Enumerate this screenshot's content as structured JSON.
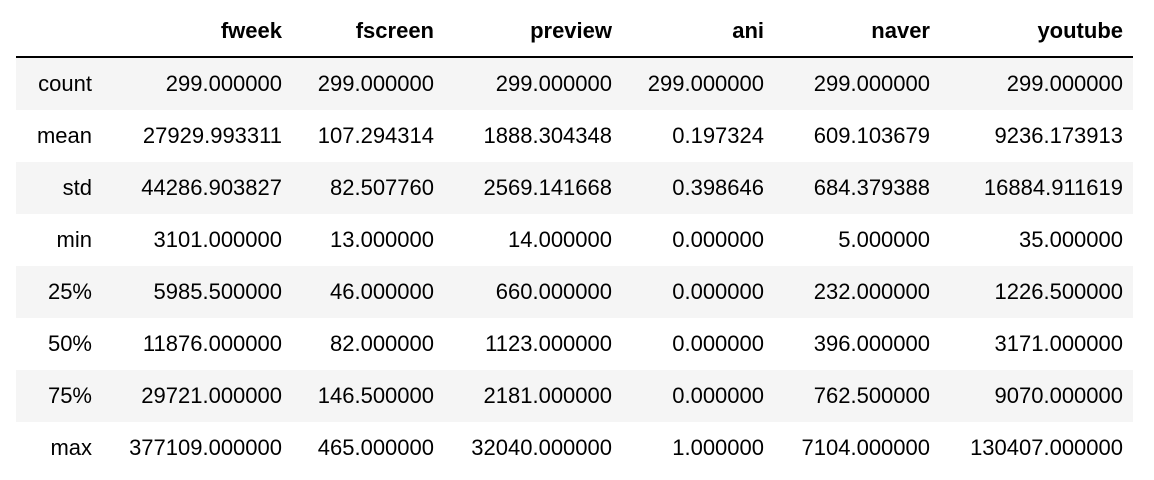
{
  "table": {
    "columns": [
      "",
      "fweek",
      "fscreen",
      "preview",
      "ani",
      "naver",
      "youtube"
    ],
    "rows": [
      {
        "index": "count",
        "values": [
          "299.000000",
          "299.000000",
          "299.000000",
          "299.000000",
          "299.000000",
          "299.000000"
        ]
      },
      {
        "index": "mean",
        "values": [
          "27929.993311",
          "107.294314",
          "1888.304348",
          "0.197324",
          "609.103679",
          "9236.173913"
        ]
      },
      {
        "index": "std",
        "values": [
          "44286.903827",
          "82.507760",
          "2569.141668",
          "0.398646",
          "684.379388",
          "16884.911619"
        ]
      },
      {
        "index": "min",
        "values": [
          "3101.000000",
          "13.000000",
          "14.000000",
          "0.000000",
          "5.000000",
          "35.000000"
        ]
      },
      {
        "index": "25%",
        "values": [
          "5985.500000",
          "46.000000",
          "660.000000",
          "0.000000",
          "232.000000",
          "1226.500000"
        ]
      },
      {
        "index": "50%",
        "values": [
          "11876.000000",
          "82.000000",
          "1123.000000",
          "0.000000",
          "396.000000",
          "3171.000000"
        ]
      },
      {
        "index": "75%",
        "values": [
          "29721.000000",
          "146.500000",
          "2181.000000",
          "0.000000",
          "762.500000",
          "9070.000000"
        ]
      },
      {
        "index": "max",
        "values": [
          "377109.000000",
          "465.000000",
          "32040.000000",
          "1.000000",
          "7104.000000",
          "130407.000000"
        ]
      }
    ]
  },
  "colors": {
    "stripe": "#f5f5f5",
    "header_rule": "#000000",
    "text": "#000000"
  }
}
